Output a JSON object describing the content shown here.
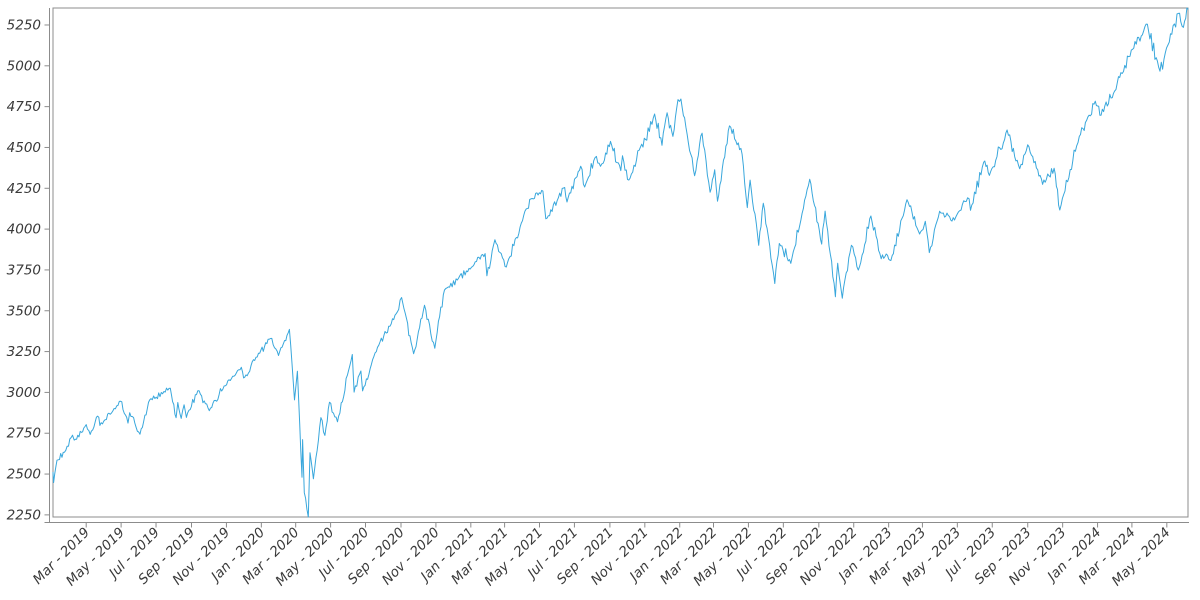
{
  "figure": {
    "background_color": "#ffffff",
    "line_color": "#39a7dc",
    "spine_color": "#8c8c8c",
    "tick_label_color": "#3a3a3a"
  },
  "chart_data": {
    "type": "line",
    "title": "",
    "xlabel": "",
    "ylabel": "",
    "legend": null,
    "grid": false,
    "x_range": [
      "2019-01-02",
      "2024-06-07"
    ],
    "ylim": [
      2237,
      5354
    ],
    "y_ticks": [
      2250,
      2500,
      2750,
      3000,
      3250,
      3500,
      3750,
      4000,
      4250,
      4500,
      4750,
      5000,
      5250
    ],
    "x_ticks": [
      "Mar - 2019",
      "May - 2019",
      "Jul - 2019",
      "Sep - 2019",
      "Nov - 2019",
      "Jan - 2020",
      "Mar - 2020",
      "May - 2020",
      "Jul - 2020",
      "Sep - 2020",
      "Nov - 2020",
      "Jan - 2021",
      "Mar - 2021",
      "May - 2021",
      "Jul - 2021",
      "Sep - 2021",
      "Nov - 2021",
      "Jan - 2022",
      "Mar - 2022",
      "May - 2022",
      "Jul - 2022",
      "Sep - 2022",
      "Nov - 2022",
      "Jan - 2023",
      "Mar - 2023",
      "May - 2023",
      "Jul - 2023",
      "Sep - 2023",
      "Nov - 2023",
      "Jan - 2024",
      "Mar - 2024",
      "May - 2024"
    ],
    "series": [
      {
        "points": [
          [
            "2019-01-02",
            2510
          ],
          [
            "2019-01-03",
            2448
          ],
          [
            "2019-01-09",
            2585
          ],
          [
            "2019-01-22",
            2633
          ],
          [
            "2019-02-05",
            2738
          ],
          [
            "2019-02-08",
            2708
          ],
          [
            "2019-03-01",
            2803
          ],
          [
            "2019-03-08",
            2743
          ],
          [
            "2019-03-21",
            2855
          ],
          [
            "2019-03-25",
            2798
          ],
          [
            "2019-04-30",
            2946
          ],
          [
            "2019-05-13",
            2812
          ],
          [
            "2019-05-16",
            2876
          ],
          [
            "2019-06-03",
            2744
          ],
          [
            "2019-06-20",
            2954
          ],
          [
            "2019-07-26",
            3026
          ],
          [
            "2019-08-05",
            2845
          ],
          [
            "2019-08-08",
            2938
          ],
          [
            "2019-08-14",
            2841
          ],
          [
            "2019-08-19",
            2924
          ],
          [
            "2019-08-23",
            2847
          ],
          [
            "2019-09-12",
            3010
          ],
          [
            "2019-10-02",
            2888
          ],
          [
            "2019-10-28",
            3039
          ],
          [
            "2019-11-27",
            3154
          ],
          [
            "2019-12-03",
            3093
          ],
          [
            "2019-12-27",
            3240
          ],
          [
            "2020-01-17",
            3330
          ],
          [
            "2020-01-31",
            3226
          ],
          [
            "2020-02-19",
            3386
          ],
          [
            "2020-02-28",
            2954
          ],
          [
            "2020-03-04",
            3130
          ],
          [
            "2020-03-12",
            2481
          ],
          [
            "2020-03-13",
            2711
          ],
          [
            "2020-03-16",
            2386
          ],
          [
            "2020-03-23",
            2237
          ],
          [
            "2020-03-26",
            2630
          ],
          [
            "2020-04-01",
            2471
          ],
          [
            "2020-04-14",
            2846
          ],
          [
            "2020-04-21",
            2737
          ],
          [
            "2020-04-29",
            2940
          ],
          [
            "2020-05-13",
            2820
          ],
          [
            "2020-06-08",
            3232
          ],
          [
            "2020-06-11",
            3002
          ],
          [
            "2020-06-23",
            3131
          ],
          [
            "2020-06-26",
            3009
          ],
          [
            "2020-07-22",
            3276
          ],
          [
            "2020-08-28",
            3508
          ],
          [
            "2020-09-02",
            3581
          ],
          [
            "2020-09-23",
            3237
          ],
          [
            "2020-10-12",
            3534
          ],
          [
            "2020-10-30",
            3270
          ],
          [
            "2020-11-16",
            3627
          ],
          [
            "2020-12-31",
            3756
          ],
          [
            "2021-01-26",
            3850
          ],
          [
            "2021-01-29",
            3714
          ],
          [
            "2021-02-12",
            3935
          ],
          [
            "2021-03-04",
            3768
          ],
          [
            "2021-03-26",
            3975
          ],
          [
            "2021-04-16",
            4185
          ],
          [
            "2021-05-07",
            4233
          ],
          [
            "2021-05-12",
            4063
          ],
          [
            "2021-06-14",
            4255
          ],
          [
            "2021-06-18",
            4166
          ],
          [
            "2021-07-12",
            4385
          ],
          [
            "2021-07-19",
            4258
          ],
          [
            "2021-08-06",
            4437
          ],
          [
            "2021-08-18",
            4400
          ],
          [
            "2021-09-02",
            4537
          ],
          [
            "2021-09-20",
            4358
          ],
          [
            "2021-09-23",
            4449
          ],
          [
            "2021-10-04",
            4300
          ],
          [
            "2021-11-18",
            4705
          ],
          [
            "2021-12-01",
            4513
          ],
          [
            "2021-12-10",
            4712
          ],
          [
            "2021-12-20",
            4568
          ],
          [
            "2021-12-29",
            4793
          ],
          [
            "2022-01-03",
            4797
          ],
          [
            "2022-01-27",
            4327
          ],
          [
            "2022-02-09",
            4587
          ],
          [
            "2022-02-23",
            4226
          ],
          [
            "2022-03-03",
            4363
          ],
          [
            "2022-03-08",
            4171
          ],
          [
            "2022-03-29",
            4632
          ],
          [
            "2022-04-20",
            4459
          ],
          [
            "2022-04-29",
            4132
          ],
          [
            "2022-05-04",
            4300
          ],
          [
            "2022-05-19",
            3901
          ],
          [
            "2022-05-27",
            4158
          ],
          [
            "2022-06-16",
            3667
          ],
          [
            "2022-06-24",
            3912
          ],
          [
            "2022-07-14",
            3790
          ],
          [
            "2022-08-16",
            4305
          ],
          [
            "2022-09-06",
            3908
          ],
          [
            "2022-09-12",
            4110
          ],
          [
            "2022-09-30",
            3586
          ],
          [
            "2022-10-04",
            3791
          ],
          [
            "2022-10-12",
            3577
          ],
          [
            "2022-10-28",
            3901
          ],
          [
            "2022-11-09",
            3749
          ],
          [
            "2022-12-01",
            4080
          ],
          [
            "2022-12-19",
            3818
          ],
          [
            "2022-12-30",
            3840
          ],
          [
            "2023-01-05",
            3808
          ],
          [
            "2023-02-02",
            4180
          ],
          [
            "2023-02-24",
            3970
          ],
          [
            "2023-03-06",
            4048
          ],
          [
            "2023-03-13",
            3856
          ],
          [
            "2023-03-31",
            4109
          ],
          [
            "2023-04-26",
            4056
          ],
          [
            "2023-05-19",
            4192
          ],
          [
            "2023-05-24",
            4115
          ],
          [
            "2023-06-16",
            4410
          ],
          [
            "2023-06-26",
            4329
          ],
          [
            "2023-07-27",
            4607
          ],
          [
            "2023-08-18",
            4370
          ],
          [
            "2023-09-01",
            4516
          ],
          [
            "2023-09-27",
            4274
          ],
          [
            "2023-10-17",
            4373
          ],
          [
            "2023-10-27",
            4117
          ],
          [
            "2023-11-30",
            4568
          ],
          [
            "2023-12-28",
            4783
          ],
          [
            "2024-01-05",
            4697
          ],
          [
            "2024-01-31",
            4846
          ],
          [
            "2024-02-13",
            4953
          ],
          [
            "2024-02-29",
            5096
          ],
          [
            "2024-03-28",
            5254
          ],
          [
            "2024-04-19",
            4967
          ],
          [
            "2024-05-03",
            5128
          ],
          [
            "2024-05-21",
            5321
          ],
          [
            "2024-05-30",
            5235
          ],
          [
            "2024-06-05",
            5354
          ],
          [
            "2024-06-07",
            5347
          ]
        ]
      }
    ]
  }
}
